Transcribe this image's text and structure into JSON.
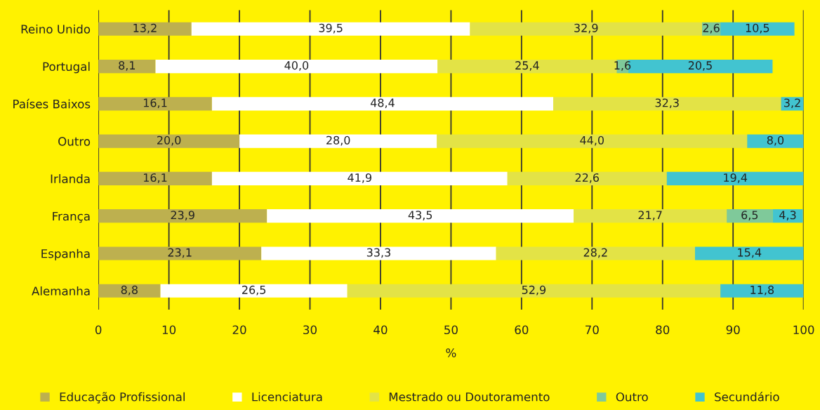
{
  "chart_data": {
    "type": "bar",
    "orientation": "horizontal",
    "stacked": true,
    "xlabel": "%",
    "categories": [
      "Reino Unido",
      "Portugal",
      "Países Baixos",
      "Outro",
      "Irlanda",
      "França",
      "Espanha",
      "Alemanha"
    ],
    "series": [
      {
        "name": "Educação Profissional",
        "color": "#bdb04f",
        "values": [
          13.2,
          8.1,
          16.1,
          20.0,
          16.1,
          23.9,
          23.1,
          8.8
        ],
        "value_labels": [
          "13,2",
          "8,1",
          "16,1",
          "20,0",
          "16,1",
          "23,9",
          "23,1",
          "8,8"
        ]
      },
      {
        "name": "Licenciatura",
        "color": "#ffffff",
        "values": [
          39.5,
          40.0,
          48.4,
          28.0,
          41.9,
          43.5,
          33.3,
          26.5
        ],
        "value_labels": [
          "39,5",
          "40,0",
          "48,4",
          "28,0",
          "41,9",
          "43,5",
          "33,3",
          "26,5"
        ]
      },
      {
        "name": "Mestrado ou Doutoramento",
        "color": "#e3e346",
        "values": [
          32.9,
          25.4,
          32.3,
          44.0,
          22.6,
          21.7,
          28.2,
          52.9
        ],
        "value_labels": [
          "32,9",
          "25,4",
          "32,3",
          "44,0",
          "22,6",
          "21,7",
          "28,2",
          "52,9"
        ]
      },
      {
        "name": "Outro",
        "color": "#7fc99a",
        "values": [
          2.6,
          1.6,
          null,
          null,
          null,
          6.5,
          null,
          null
        ],
        "value_labels": [
          "2,6",
          "1,6",
          null,
          null,
          null,
          "6,5",
          null,
          null
        ]
      },
      {
        "name": "Secundário",
        "color": "#42c4d0",
        "values": [
          10.5,
          20.5,
          3.2,
          8.0,
          19.4,
          4.3,
          15.4,
          11.8
        ],
        "value_labels": [
          "10,5",
          "20,5",
          "3,2",
          "8,0",
          "19,4",
          "4,3",
          "15,4",
          "11,8"
        ]
      }
    ],
    "xlim": [
      0,
      100
    ],
    "xticks": [
      0,
      10,
      20,
      30,
      40,
      50,
      60,
      70,
      80,
      90,
      100
    ],
    "grid": "x",
    "legend": "bottom"
  }
}
